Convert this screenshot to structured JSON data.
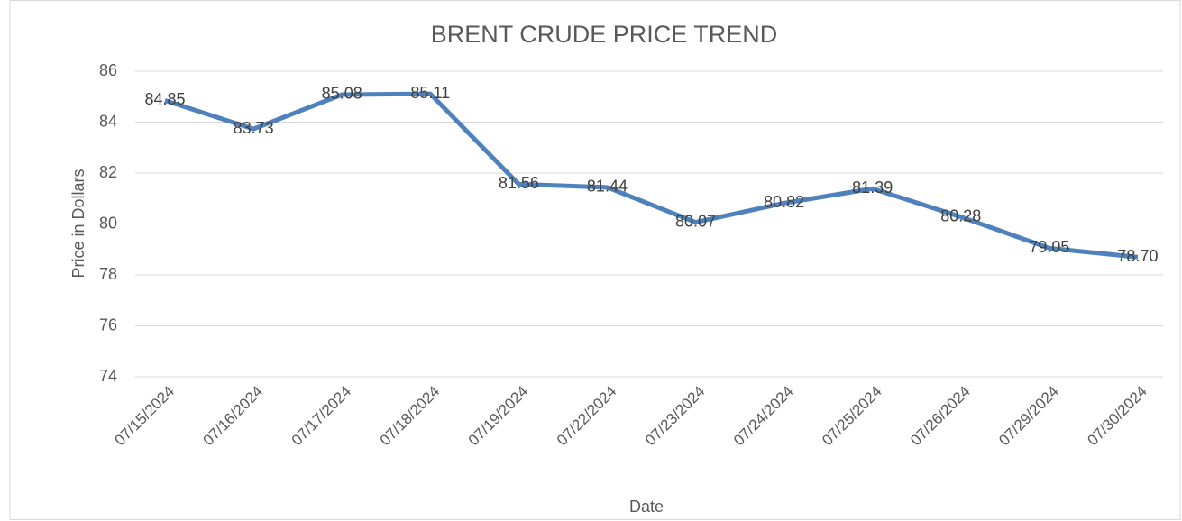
{
  "chart_data": {
    "type": "line",
    "title": "BRENT CRUDE PRICE TREND",
    "x_label": "Date",
    "y_label": "Price in Dollars",
    "categories": [
      "07/15/2024",
      "07/16/2024",
      "07/17/2024",
      "07/18/2024",
      "07/19/2024",
      "07/22/2024",
      "07/23/2024",
      "07/24/2024",
      "07/25/2024",
      "07/26/2024",
      "07/29/2024",
      "07/30/2024"
    ],
    "series": [
      {
        "name": "Price",
        "color": "#4f81bd",
        "values": [
          84.85,
          83.73,
          85.08,
          85.11,
          81.56,
          81.44,
          80.07,
          80.82,
          81.39,
          80.28,
          79.05,
          78.7
        ],
        "value_labels": [
          "84.85",
          "83.73",
          "85.08",
          "85.11",
          "81.56",
          "81.44",
          "80.07",
          "80.82",
          "81.39",
          "80.28",
          "79.05",
          "78.70"
        ]
      }
    ],
    "ylim": [
      74,
      86
    ],
    "yticks": [
      74,
      76,
      78,
      80,
      82,
      84,
      86
    ],
    "grid": true
  }
}
